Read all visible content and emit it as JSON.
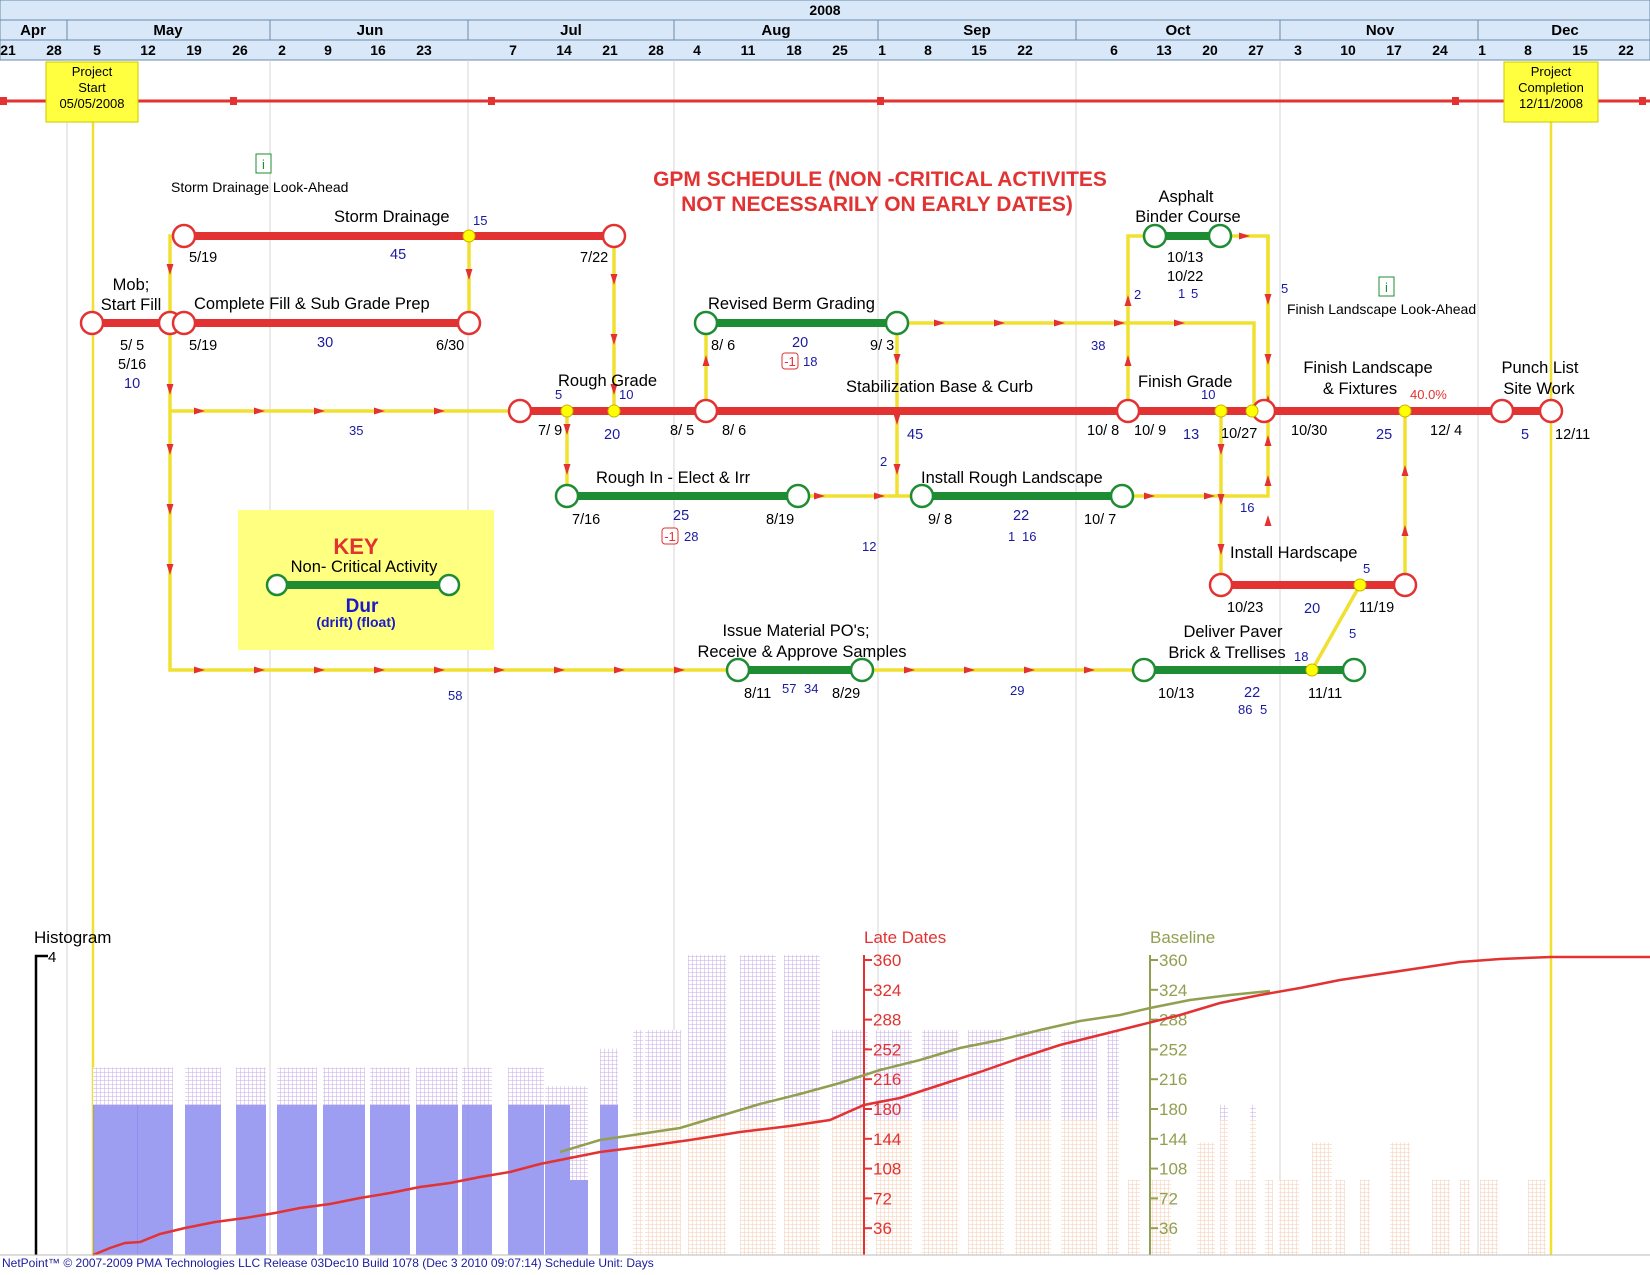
{
  "header": {
    "year": "2008",
    "months": [
      {
        "label": "Apr",
        "x": 33
      },
      {
        "label": "May",
        "x": 168
      },
      {
        "label": "Jun",
        "x": 370
      },
      {
        "label": "Jul",
        "x": 571
      },
      {
        "label": "Aug",
        "x": 776
      },
      {
        "label": "Sep",
        "x": 977
      },
      {
        "label": "Oct",
        "x": 1178
      },
      {
        "label": "Nov",
        "x": 1380
      },
      {
        "label": "Dec",
        "x": 1565
      }
    ],
    "month_bounds": [
      67,
      270,
      468,
      674,
      878,
      1076,
      1280,
      1478
    ],
    "weeks": [
      {
        "label": "21",
        "x": 8
      },
      {
        "label": "28",
        "x": 54
      },
      {
        "label": "5",
        "x": 97
      },
      {
        "label": "12",
        "x": 148
      },
      {
        "label": "19",
        "x": 194
      },
      {
        "label": "26",
        "x": 240
      },
      {
        "label": "2",
        "x": 282
      },
      {
        "label": "9",
        "x": 328
      },
      {
        "label": "16",
        "x": 378
      },
      {
        "label": "23",
        "x": 424
      },
      {
        "label": "7",
        "x": 513
      },
      {
        "label": "14",
        "x": 564
      },
      {
        "label": "21",
        "x": 610
      },
      {
        "label": "28",
        "x": 656
      },
      {
        "label": "4",
        "x": 697
      },
      {
        "label": "11",
        "x": 748
      },
      {
        "label": "18",
        "x": 794
      },
      {
        "label": "25",
        "x": 840
      },
      {
        "label": "1",
        "x": 882
      },
      {
        "label": "8",
        "x": 928
      },
      {
        "label": "15",
        "x": 979
      },
      {
        "label": "22",
        "x": 1025
      },
      {
        "label": "6",
        "x": 1114
      },
      {
        "label": "13",
        "x": 1164
      },
      {
        "label": "20",
        "x": 1210
      },
      {
        "label": "27",
        "x": 1256
      },
      {
        "label": "3",
        "x": 1298
      },
      {
        "label": "10",
        "x": 1348
      },
      {
        "label": "17",
        "x": 1394
      },
      {
        "label": "24",
        "x": 1440
      },
      {
        "label": "1",
        "x": 1482
      },
      {
        "label": "8",
        "x": 1528
      },
      {
        "label": "15",
        "x": 1580
      },
      {
        "label": "22",
        "x": 1626
      }
    ]
  },
  "milestones": {
    "start": {
      "line1": "Project",
      "line2": "Start",
      "line3": "05/05/2008"
    },
    "end": {
      "line1": "Project",
      "line2": "Completion",
      "line3": "12/11/2008"
    }
  },
  "title": {
    "line1": "GPM SCHEDULE (NON -CRITICAL ACTIVITES",
    "line2": "NOT NECESSARILY ON EARLY DATES)"
  },
  "notes": {
    "storm_lookahead": "Storm Drainage Look-Ahead",
    "finish_lookahead": "Finish Landscape Look-Ahead",
    "info_glyph": "i"
  },
  "activities": {
    "mob": {
      "name1": "Mob;",
      "name2": "Start Fill",
      "start": "5/ 5",
      "finish": "5/16",
      "dur": "10"
    },
    "storm": {
      "name": "Storm Drainage",
      "start": "5/19",
      "finish": "7/22",
      "dur": "45",
      "rel": "15"
    },
    "fill": {
      "name": "Complete Fill & Sub Grade Prep",
      "start": "5/19",
      "finish": "6/30",
      "dur": "30"
    },
    "rough_grade": {
      "name": "Rough Grade",
      "start": "7/ 9",
      "finish": "8/ 5",
      "dur": "20",
      "rel_a": "5",
      "rel_b": "10"
    },
    "berm": {
      "name": "Revised Berm Grading",
      "start": "8/ 6",
      "finish": "9/ 3",
      "dur": "20",
      "drift": "-1",
      "float": "18"
    },
    "stab": {
      "name": "Stabilization Base & Curb",
      "start": "8/ 6",
      "finish": "10/ 8",
      "dur": "45"
    },
    "finish_grade": {
      "name": "Finish Grade",
      "start": "10/ 9",
      "finish": "10/27",
      "dur": "13",
      "rel": "10"
    },
    "asphalt": {
      "name1": "Asphalt",
      "name2": "Binder Course",
      "start": "10/13",
      "finish": "10/22",
      "float_a": "1",
      "float_b": "5",
      "rel_a": "2",
      "rel_b": "5"
    },
    "landscape": {
      "name1": "Finish Landscape",
      "name2": "& Fixtures",
      "start": "10/30",
      "finish": "12/ 4",
      "dur": "25",
      "pct": "40.0%"
    },
    "punch": {
      "name1": "Punch List",
      "name2": "Site Work",
      "finish": "12/11",
      "dur": "5"
    },
    "rough_in": {
      "name": "Rough In - Elect & Irr",
      "start": "7/16",
      "finish": "8/19",
      "dur": "25",
      "drift": "-1",
      "float": "28"
    },
    "rough_land": {
      "name": "Install Rough Landscape",
      "start": "9/ 8",
      "finish": "10/ 7",
      "dur": "22",
      "float_a": "1",
      "float_b": "16"
    },
    "hardscape": {
      "name": "Install Hardscape",
      "start": "10/23",
      "finish": "11/19",
      "dur": "20",
      "rel": "5"
    },
    "issue_po": {
      "name1": "Issue Material PO's;",
      "name2": "Receive & Approve Samples",
      "start": "8/11",
      "finish": "8/29",
      "float_a": "57",
      "float_b": "34"
    },
    "paver": {
      "name1": "Deliver Paver",
      "name2": "Brick & Trellises",
      "start": "10/13",
      "finish": "11/11",
      "dur": "22",
      "float_a": "86",
      "float_b": "5",
      "rel_a": "18",
      "rel_b": "5"
    }
  },
  "links": {
    "l35": "35",
    "l38": "38",
    "l2": "2",
    "l45": "45",
    "l12": "12",
    "l16": "16",
    "l58": "58",
    "l29": "29"
  },
  "key": {
    "title": "KEY",
    "activity": "Non- Critical  Activity",
    "dur": "Dur",
    "sub": "(drift) (float)"
  },
  "histogram": {
    "label": "Histogram",
    "max": "4",
    "late_label": "Late Dates",
    "base_label": "Baseline",
    "ticks": [
      "360",
      "324",
      "288",
      "252",
      "216",
      "180",
      "144",
      "108",
      "72",
      "36"
    ]
  },
  "colors": {
    "critical": "#e23232",
    "noncritical": "#1e8c32",
    "link": "#f0e030",
    "axis_late": "#e23232",
    "axis_base": "#90a050",
    "header_bg": "#d8e8f8",
    "milestone_bg": "#ffff40",
    "key_bg": "#ffff80",
    "date_text": "#1a1aa0",
    "hist_purple": "#c8a8e8",
    "hist_blue": "#8c8cf0",
    "hist_peach": "#f8d8c0"
  },
  "footer": "NetPoint™ © 2007-2009 PMA Technologies LLC   Release 03Dec10 Build 1078   (Dec  3 2010  09:07:14)   Schedule Unit: Days"
}
